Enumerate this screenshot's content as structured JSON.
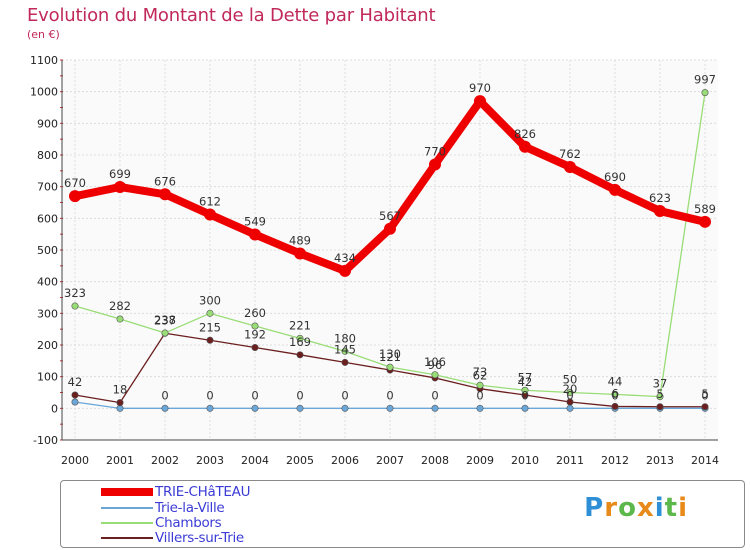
{
  "chart_data": {
    "type": "line",
    "title": "Evolution du Montant de la Dette par Habitant",
    "subtitle": "(en €)",
    "xlabel": "",
    "ylabel": "(en €)",
    "ylim": [
      -100,
      1100
    ],
    "yticks": [
      -100,
      0,
      100,
      200,
      300,
      400,
      500,
      600,
      700,
      800,
      900,
      1000,
      1100
    ],
    "x": [
      "2000",
      "2001",
      "2002",
      "2003",
      "2004",
      "2005",
      "2006",
      "2007",
      "2008",
      "2009",
      "2010",
      "2011",
      "2012",
      "2013",
      "2014"
    ],
    "series": [
      {
        "name": "TRIE-CHâTEAU",
        "color": "#ee0000",
        "values": [
          670,
          699,
          676,
          612,
          549,
          489,
          434,
          567,
          770,
          970,
          826,
          762,
          690,
          623,
          589
        ],
        "labels": [
          "670",
          "699",
          "676",
          "612",
          "549",
          "489",
          "434",
          "567",
          "770",
          "970",
          "826",
          "762",
          "690",
          "623",
          "589"
        ]
      },
      {
        "name": "Trie-la-Ville",
        "color": "#6aa6d8",
        "values": [
          20,
          0,
          0,
          0,
          0,
          0,
          0,
          0,
          0,
          0,
          0,
          0,
          0,
          0,
          0
        ],
        "labels": [
          "",
          "",
          "0",
          "0",
          "0",
          "0",
          "0",
          "0",
          "0",
          "0",
          "0",
          "0",
          "0",
          "",
          "0"
        ]
      },
      {
        "name": "Chambors",
        "color": "#99dd77",
        "values": [
          323,
          282,
          238,
          300,
          260,
          221,
          180,
          130,
          106,
          73,
          57,
          50,
          44,
          37,
          997
        ],
        "labels": [
          "323",
          "282",
          "238",
          "300",
          "260",
          "221",
          "180",
          "130",
          "106",
          "73",
          "57",
          "50",
          "44",
          "37",
          "997"
        ]
      },
      {
        "name": "Villers-sur-Trie",
        "color": "#6b1f1f",
        "values": [
          42,
          18,
          237,
          215,
          192,
          169,
          145,
          121,
          96,
          62,
          42,
          20,
          6,
          5,
          5
        ],
        "labels": [
          "42",
          "18",
          "237",
          "215",
          "192",
          "169",
          "145",
          "121",
          "96",
          "62",
          "42",
          "20",
          "6",
          "5",
          "5"
        ]
      }
    ]
  },
  "logo": {
    "text": [
      "P",
      "r",
      "o",
      "x",
      "i",
      "t",
      "i"
    ],
    "colors": [
      "#2e8fd6",
      "#e88a1a",
      "#5cb84a",
      "#e88a1a",
      "#2e8fd6",
      "#5cb84a",
      "#e88a1a"
    ]
  }
}
